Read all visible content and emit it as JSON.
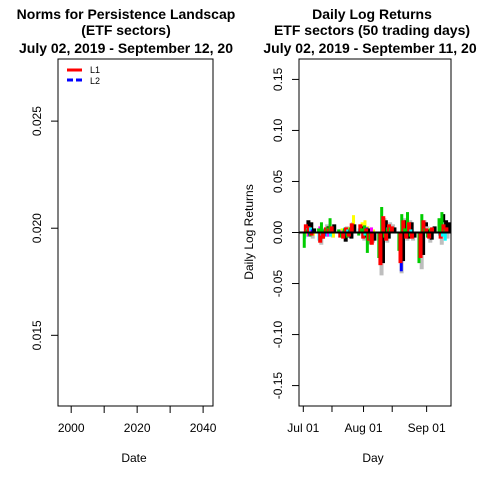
{
  "chart_data": [
    {
      "type": "line",
      "title_lines": [
        "Norms for Persistence Landscap",
        "(ETF sectors)",
        "July 02, 2019 - September 12, 20"
      ],
      "xlabel": "Date",
      "ylabel": "",
      "xlim": [
        1996,
        2043
      ],
      "ylim": [
        0.0117,
        0.0279
      ],
      "x_ticks": [
        2000,
        2020,
        2040
      ],
      "x_minor_ticks": [
        2010,
        2030
      ],
      "y_ticks": [
        0.015,
        0.02,
        0.025
      ],
      "y_tick_labels": [
        "0.015",
        "0.020",
        "0.025"
      ],
      "legend": {
        "position": "top-left",
        "entries": [
          {
            "label": "L1",
            "color": "#ff0000"
          },
          {
            "label": "L2",
            "color": "#0000ff"
          }
        ]
      },
      "series": []
    },
    {
      "type": "bar",
      "title_lines": [
        "Daily Log Returns",
        "ETF sectors (50 trading days)",
        "July 02, 2019 - September 11, 20"
      ],
      "xlabel": "Day",
      "ylabel": "Daily Log Returns",
      "xlim": [
        -1.5,
        51.5
      ],
      "ylim": [
        -0.17,
        0.17
      ],
      "x_ticks": [
        0,
        21,
        43
      ],
      "x_tick_labels": [
        "Jul 01",
        "Aug 01",
        "Sep 01"
      ],
      "y_ticks": [
        -0.15,
        -0.1,
        -0.05,
        0.0,
        0.05,
        0.1,
        0.15
      ],
      "y_tick_labels": [
        "-0.15",
        "-0.10",
        "-0.05",
        "0.00",
        "0.05",
        "0.10",
        "0.15"
      ],
      "reference_line": 0,
      "colors": {
        "black": "#000000",
        "red": "#ff0000",
        "green": "#00cd00",
        "blue": "#0000ff",
        "cyan": "#00ffff",
        "magenta": "#ff00ff",
        "yellow": "#ffff00",
        "gray": "#bebebe"
      },
      "days": [
        {
          "x": 1,
          "values": {
            "gray": -0.004,
            "black": 0.012,
            "green": -0.015,
            "red": 0.008,
            "blue": 0.004,
            "cyan": -0.006,
            "magenta": 0.003,
            "yellow": -0.003
          }
        },
        {
          "x": 2,
          "values": {
            "gray": 0.006,
            "black": 0.01,
            "green": 0.003,
            "red": 0.006,
            "blue": -0.003,
            "cyan": 0.004,
            "magenta": -0.004,
            "yellow": 0.002
          }
        },
        {
          "x": 3,
          "values": {
            "gray": -0.006,
            "black": 0.004,
            "green": -0.004,
            "red": -0.003,
            "blue": 0.003,
            "cyan": 0.005,
            "magenta": 0.002,
            "yellow": -0.003
          }
        },
        {
          "x": 6,
          "values": {
            "gray": -0.012,
            "black": -0.006,
            "green": 0.004,
            "red": -0.01,
            "blue": -0.004,
            "cyan": -0.008,
            "magenta": 0.006,
            "yellow": -0.005
          }
        },
        {
          "x": 7,
          "values": {
            "gray": 0.004,
            "black": 0.003,
            "green": 0.01,
            "red": -0.006,
            "blue": 0.002,
            "cyan": -0.003,
            "magenta": -0.005,
            "yellow": 0.004
          }
        },
        {
          "x": 8,
          "values": {
            "gray": 0.008,
            "black": 0.006,
            "green": 0.003,
            "red": 0.005,
            "blue": -0.004,
            "cyan": 0.004,
            "magenta": 0.003,
            "yellow": 0.006
          }
        },
        {
          "x": 9,
          "values": {
            "gray": -0.004,
            "black": 0.003,
            "green": 0.005,
            "red": 0.004,
            "blue": 0.004,
            "cyan": -0.004,
            "magenta": -0.004,
            "yellow": 0.002
          }
        },
        {
          "x": 10,
          "values": {
            "gray": -0.005,
            "black": 0.008,
            "green": 0.014,
            "red": 0.006,
            "blue": 0.003,
            "cyan": -0.004,
            "magenta": 0.004,
            "yellow": -0.005
          }
        },
        {
          "x": 13,
          "values": {
            "gray": 0.003,
            "black": -0.003,
            "green": 0.003,
            "red": -0.005,
            "blue": -0.003,
            "cyan": 0.003,
            "magenta": 0.002,
            "yellow": 0.004
          }
        },
        {
          "x": 14,
          "values": {
            "gray": -0.006,
            "black": -0.009,
            "green": -0.005,
            "red": -0.006,
            "blue": 0.002,
            "cyan": -0.005,
            "magenta": -0.004,
            "yellow": -0.004
          }
        },
        {
          "x": 15,
          "values": {
            "gray": 0.006,
            "black": -0.005,
            "green": 0.004,
            "red": 0.005,
            "blue": -0.003,
            "cyan": 0.005,
            "magenta": 0.003,
            "yellow": 0.005
          }
        },
        {
          "x": 16,
          "values": {
            "gray": -0.004,
            "black": -0.006,
            "green": -0.005,
            "red": -0.004,
            "blue": 0.003,
            "cyan": 0.003,
            "magenta": -0.005,
            "yellow": -0.003
          }
        },
        {
          "x": 17,
          "values": {
            "gray": 0.01,
            "black": 0.008,
            "green": 0.005,
            "red": 0.009,
            "blue": 0.004,
            "cyan": 0.004,
            "magenta": 0.006,
            "yellow": 0.017
          }
        },
        {
          "x": 20,
          "values": {
            "gray": 0.004,
            "black": 0.006,
            "green": -0.003,
            "red": 0.008,
            "blue": 0.003,
            "cyan": 0.004,
            "magenta": 0.003,
            "yellow": 0.01
          }
        },
        {
          "x": 21,
          "values": {
            "gray": -0.008,
            "black": -0.005,
            "green": 0.004,
            "red": -0.006,
            "blue": -0.003,
            "cyan": 0.003,
            "magenta": -0.004,
            "yellow": 0.012
          }
        },
        {
          "x": 22,
          "values": {
            "gray": 0.006,
            "black": 0.004,
            "green": 0.007,
            "red": 0.004,
            "blue": 0.005,
            "cyan": -0.003,
            "magenta": 0.003,
            "yellow": 0.006
          }
        },
        {
          "x": 23,
          "values": {
            "gray": -0.012,
            "black": -0.011,
            "green": -0.02,
            "red": -0.008,
            "blue": -0.006,
            "cyan": -0.005,
            "magenta": -0.006,
            "yellow": -0.01
          }
        },
        {
          "x": 24,
          "values": {
            "gray": -0.01,
            "black": -0.008,
            "green": -0.007,
            "red": -0.012,
            "blue": -0.005,
            "cyan": -0.004,
            "magenta": 0.005,
            "yellow": 0.003
          }
        },
        {
          "x": 27,
          "values": {
            "gray": -0.042,
            "black": -0.03,
            "green": -0.025,
            "red": -0.032,
            "blue": -0.02,
            "cyan": -0.012,
            "magenta": -0.015,
            "yellow": -0.018
          }
        },
        {
          "x": 28,
          "values": {
            "gray": 0.014,
            "black": 0.012,
            "green": 0.025,
            "red": 0.016,
            "blue": 0.008,
            "cyan": 0.01,
            "magenta": 0.009,
            "yellow": 0.012
          }
        },
        {
          "x": 29,
          "values": {
            "gray": -0.01,
            "black": -0.006,
            "green": -0.005,
            "red": -0.008,
            "blue": -0.004,
            "cyan": -0.003,
            "magenta": -0.004,
            "yellow": -0.005
          }
        },
        {
          "x": 30,
          "values": {
            "gray": 0.01,
            "black": 0.006,
            "green": 0.004,
            "red": 0.008,
            "blue": 0.004,
            "cyan": 0.005,
            "magenta": 0.004,
            "yellow": 0.006
          }
        },
        {
          "x": 31,
          "values": {
            "gray": 0.008,
            "black": 0.005,
            "green": 0.005,
            "red": 0.006,
            "blue": 0.003,
            "cyan": 0.004,
            "magenta": 0.003,
            "yellow": 0.005
          }
        },
        {
          "x": 34,
          "values": {
            "gray": -0.04,
            "black": -0.028,
            "green": -0.018,
            "red": -0.03,
            "blue": -0.038,
            "cyan": -0.012,
            "magenta": -0.014,
            "yellow": -0.016
          }
        },
        {
          "x": 35,
          "values": {
            "gray": 0.014,
            "black": 0.012,
            "green": 0.018,
            "red": 0.012,
            "blue": 0.01,
            "cyan": 0.008,
            "magenta": 0.006,
            "yellow": 0.01
          }
        },
        {
          "x": 36,
          "values": {
            "gray": -0.008,
            "black": -0.006,
            "green": 0.004,
            "red": -0.006,
            "blue": -0.004,
            "cyan": 0.003,
            "magenta": -0.003,
            "yellow": 0.004
          }
        },
        {
          "x": 37,
          "values": {
            "gray": 0.012,
            "black": 0.01,
            "green": 0.02,
            "red": 0.01,
            "blue": 0.006,
            "cyan": 0.005,
            "magenta": 0.006,
            "yellow": 0.008
          }
        },
        {
          "x": 38,
          "values": {
            "gray": -0.008,
            "black": -0.005,
            "green": -0.004,
            "red": -0.006,
            "blue": -0.003,
            "cyan": 0.003,
            "magenta": -0.003,
            "yellow": -0.004
          }
        },
        {
          "x": 41,
          "values": {
            "gray": -0.036,
            "black": -0.022,
            "green": -0.03,
            "red": -0.025,
            "blue": -0.014,
            "cyan": -0.01,
            "magenta": -0.012,
            "yellow": -0.015
          }
        },
        {
          "x": 42,
          "values": {
            "gray": 0.012,
            "black": 0.01,
            "green": 0.018,
            "red": 0.012,
            "blue": 0.008,
            "cyan": 0.006,
            "magenta": 0.006,
            "yellow": 0.009
          }
        },
        {
          "x": 43,
          "values": {
            "gray": 0.006,
            "black": 0.003,
            "green": 0.004,
            "red": 0.004,
            "blue": 0.003,
            "cyan": 0.002,
            "magenta": 0.003,
            "yellow": 0.004
          }
        },
        {
          "x": 44,
          "values": {
            "gray": -0.01,
            "black": -0.007,
            "green": -0.005,
            "red": -0.006,
            "blue": -0.004,
            "cyan": -0.003,
            "magenta": -0.004,
            "yellow": -0.005
          }
        },
        {
          "x": 45,
          "values": {
            "gray": 0.005,
            "black": 0.006,
            "green": 0.004,
            "red": 0.005,
            "blue": 0.003,
            "cyan": 0.003,
            "magenta": 0.003,
            "yellow": 0.004
          }
        },
        {
          "x": 48,
          "values": {
            "gray": -0.012,
            "black": 0.018,
            "green": 0.014,
            "red": -0.006,
            "blue": -0.004,
            "cyan": -0.003,
            "magenta": 0.004,
            "yellow": 0.006
          }
        },
        {
          "x": 49,
          "values": {
            "gray": 0.01,
            "black": 0.012,
            "green": 0.02,
            "red": 0.008,
            "blue": 0.005,
            "cyan": -0.004,
            "magenta": 0.004,
            "yellow": 0.006
          }
        },
        {
          "x": 50,
          "values": {
            "gray": -0.006,
            "black": 0.01,
            "green": 0.003,
            "red": 0.005,
            "blue": 0.004,
            "cyan": -0.008,
            "magenta": 0.003,
            "yellow": 0.005
          }
        }
      ]
    }
  ]
}
